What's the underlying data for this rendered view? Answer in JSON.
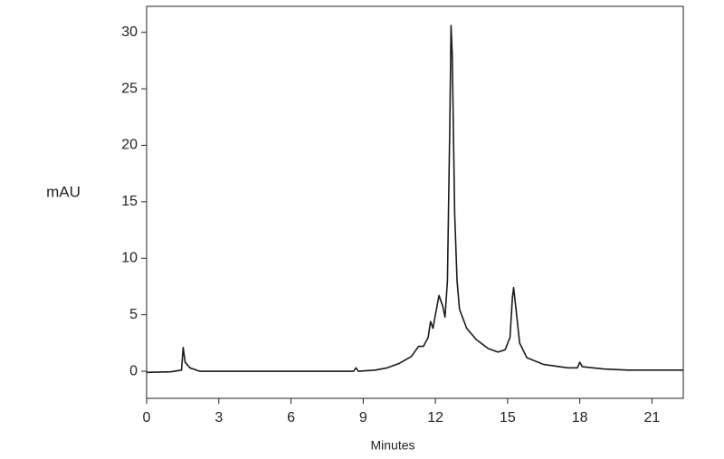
{
  "chart_data": {
    "type": "line",
    "xlabel": "Minutes",
    "ylabel": "mAU",
    "xlim": [
      0,
      22.3
    ],
    "ylim": [
      -2.4,
      32.3
    ],
    "xticks": [
      0,
      3,
      6,
      9,
      12,
      15,
      18,
      21
    ],
    "yticks": [
      0,
      5,
      10,
      15,
      20,
      25,
      30
    ],
    "x": [
      0,
      1.0,
      1.45,
      1.52,
      1.6,
      1.8,
      2.2,
      3,
      5,
      7,
      8.6,
      8.7,
      8.8,
      9.5,
      10,
      10.5,
      11,
      11.3,
      11.5,
      11.7,
      11.8,
      11.9,
      12.0,
      12.15,
      12.3,
      12.4,
      12.5,
      12.6,
      12.65,
      12.7,
      12.8,
      12.9,
      13.0,
      13.3,
      13.7,
      14.2,
      14.6,
      14.9,
      15.1,
      15.2,
      15.25,
      15.35,
      15.5,
      15.8,
      16.5,
      17.5,
      17.9,
      18.0,
      18.1,
      19,
      20,
      22.3
    ],
    "series": [
      {
        "color": "#1a1a1a",
        "values": [
          -0.1,
          -0.05,
          0.1,
          2.1,
          0.8,
          0.3,
          0.0,
          0.0,
          0.0,
          0.0,
          0.0,
          0.3,
          0.0,
          0.1,
          0.3,
          0.7,
          1.3,
          2.2,
          2.2,
          3.0,
          4.4,
          3.8,
          5.0,
          6.7,
          5.8,
          4.8,
          8,
          22,
          30.6,
          28,
          14,
          8,
          5.5,
          3.8,
          2.8,
          2.0,
          1.7,
          1.9,
          3,
          6.5,
          7.4,
          5.5,
          2.5,
          1.2,
          0.6,
          0.3,
          0.3,
          0.8,
          0.4,
          0.2,
          0.1,
          0.1
        ]
      }
    ]
  }
}
